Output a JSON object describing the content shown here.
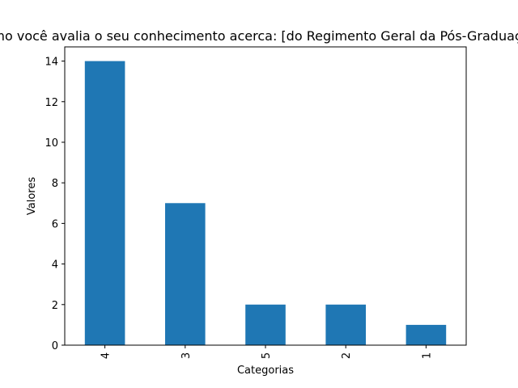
{
  "chart_data": {
    "type": "bar",
    "title": "Como você avalia o seu conhecimento acerca: [do Regimento Geral da Pós-Graduação]",
    "xlabel": "Categorias",
    "ylabel": "Valores",
    "categories": [
      "4",
      "3",
      "5",
      "2",
      "1"
    ],
    "values": [
      14,
      7,
      2,
      2,
      1
    ],
    "ylim": [
      0,
      14.7
    ],
    "yticks": [
      0,
      2,
      4,
      6,
      8,
      10,
      12,
      14
    ],
    "grid": false,
    "bar_color": "#1f77b4"
  }
}
